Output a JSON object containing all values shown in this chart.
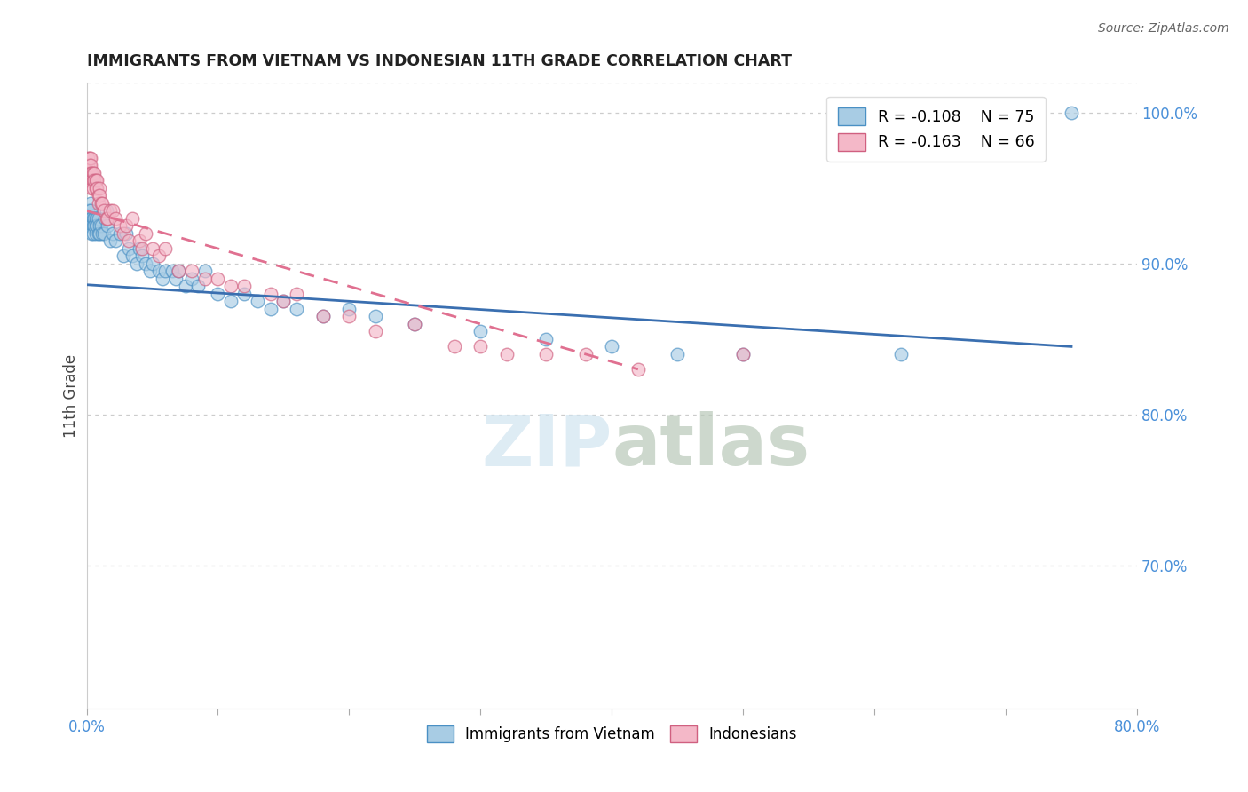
{
  "title": "IMMIGRANTS FROM VIETNAM VS INDONESIAN 11TH GRADE CORRELATION CHART",
  "source": "Source: ZipAtlas.com",
  "ylabel": "11th Grade",
  "legend_blue_r": "R = -0.108",
  "legend_blue_n": "N = 75",
  "legend_pink_r": "R = -0.163",
  "legend_pink_n": "N = 66",
  "legend_blue_label": "Immigrants from Vietnam",
  "legend_pink_label": "Indonesians",
  "blue_color": "#a8cce4",
  "blue_edge": "#4a90c4",
  "pink_color": "#f4b8c8",
  "pink_edge": "#d06080",
  "trendline_blue_color": "#3a6fb0",
  "trendline_pink_color": "#e07090",
  "watermark_color": "#d0e4f0",
  "blue_x": [
    0.001,
    0.001,
    0.001,
    0.002,
    0.002,
    0.002,
    0.003,
    0.003,
    0.003,
    0.003,
    0.004,
    0.004,
    0.004,
    0.005,
    0.005,
    0.005,
    0.006,
    0.006,
    0.007,
    0.007,
    0.007,
    0.008,
    0.008,
    0.009,
    0.009,
    0.01,
    0.01,
    0.011,
    0.012,
    0.013,
    0.014,
    0.015,
    0.016,
    0.018,
    0.02,
    0.022,
    0.025,
    0.028,
    0.03,
    0.032,
    0.035,
    0.038,
    0.04,
    0.042,
    0.045,
    0.048,
    0.05,
    0.055,
    0.058,
    0.06,
    0.065,
    0.068,
    0.07,
    0.075,
    0.08,
    0.085,
    0.09,
    0.1,
    0.11,
    0.12,
    0.13,
    0.14,
    0.15,
    0.16,
    0.18,
    0.2,
    0.22,
    0.25,
    0.3,
    0.35,
    0.4,
    0.45,
    0.5,
    0.62,
    0.75
  ],
  "blue_y": [
    0.935,
    0.93,
    0.925,
    0.935,
    0.93,
    0.925,
    0.94,
    0.935,
    0.93,
    0.925,
    0.93,
    0.925,
    0.92,
    0.93,
    0.925,
    0.92,
    0.93,
    0.925,
    0.93,
    0.925,
    0.92,
    0.93,
    0.925,
    0.93,
    0.92,
    0.925,
    0.92,
    0.925,
    0.92,
    0.92,
    0.93,
    0.935,
    0.925,
    0.915,
    0.92,
    0.915,
    0.92,
    0.905,
    0.92,
    0.91,
    0.905,
    0.9,
    0.91,
    0.905,
    0.9,
    0.895,
    0.9,
    0.895,
    0.89,
    0.895,
    0.895,
    0.89,
    0.895,
    0.885,
    0.89,
    0.885,
    0.895,
    0.88,
    0.875,
    0.88,
    0.875,
    0.87,
    0.875,
    0.87,
    0.865,
    0.87,
    0.865,
    0.86,
    0.855,
    0.85,
    0.845,
    0.84,
    0.84,
    0.84,
    1.0
  ],
  "pink_x": [
    0.001,
    0.001,
    0.001,
    0.001,
    0.002,
    0.002,
    0.002,
    0.003,
    0.003,
    0.003,
    0.003,
    0.004,
    0.004,
    0.004,
    0.005,
    0.005,
    0.005,
    0.006,
    0.006,
    0.007,
    0.007,
    0.008,
    0.008,
    0.009,
    0.009,
    0.01,
    0.01,
    0.011,
    0.012,
    0.013,
    0.015,
    0.016,
    0.018,
    0.02,
    0.022,
    0.025,
    0.028,
    0.03,
    0.032,
    0.035,
    0.04,
    0.042,
    0.045,
    0.05,
    0.055,
    0.06,
    0.07,
    0.08,
    0.09,
    0.1,
    0.11,
    0.12,
    0.14,
    0.15,
    0.16,
    0.18,
    0.2,
    0.22,
    0.25,
    0.28,
    0.3,
    0.32,
    0.35,
    0.38,
    0.42,
    0.5
  ],
  "pink_y": [
    0.97,
    0.965,
    0.96,
    0.955,
    0.97,
    0.965,
    0.96,
    0.97,
    0.965,
    0.96,
    0.955,
    0.96,
    0.955,
    0.95,
    0.96,
    0.955,
    0.95,
    0.96,
    0.955,
    0.955,
    0.95,
    0.955,
    0.95,
    0.945,
    0.94,
    0.95,
    0.945,
    0.94,
    0.94,
    0.935,
    0.93,
    0.93,
    0.935,
    0.935,
    0.93,
    0.925,
    0.92,
    0.925,
    0.915,
    0.93,
    0.915,
    0.91,
    0.92,
    0.91,
    0.905,
    0.91,
    0.895,
    0.895,
    0.89,
    0.89,
    0.885,
    0.885,
    0.88,
    0.875,
    0.88,
    0.865,
    0.865,
    0.855,
    0.86,
    0.845,
    0.845,
    0.84,
    0.84,
    0.84,
    0.83,
    0.84
  ],
  "blue_trend_x": [
    0.0,
    0.75
  ],
  "blue_trend_y": [
    0.886,
    0.845
  ],
  "pink_trend_x": [
    0.0,
    0.42
  ],
  "pink_trend_y": [
    0.935,
    0.83
  ],
  "xlim": [
    0.0,
    0.8
  ],
  "ylim": [
    0.605,
    1.02
  ],
  "xtick_positions": [
    0.0,
    0.1,
    0.2,
    0.3,
    0.4,
    0.5,
    0.6,
    0.7,
    0.8
  ],
  "ytick_right_positions": [
    0.7,
    0.8,
    0.9,
    1.0
  ],
  "ytick_right_labels": [
    "70.0%",
    "80.0%",
    "90.0%",
    "100.0%"
  ],
  "background": "#ffffff"
}
